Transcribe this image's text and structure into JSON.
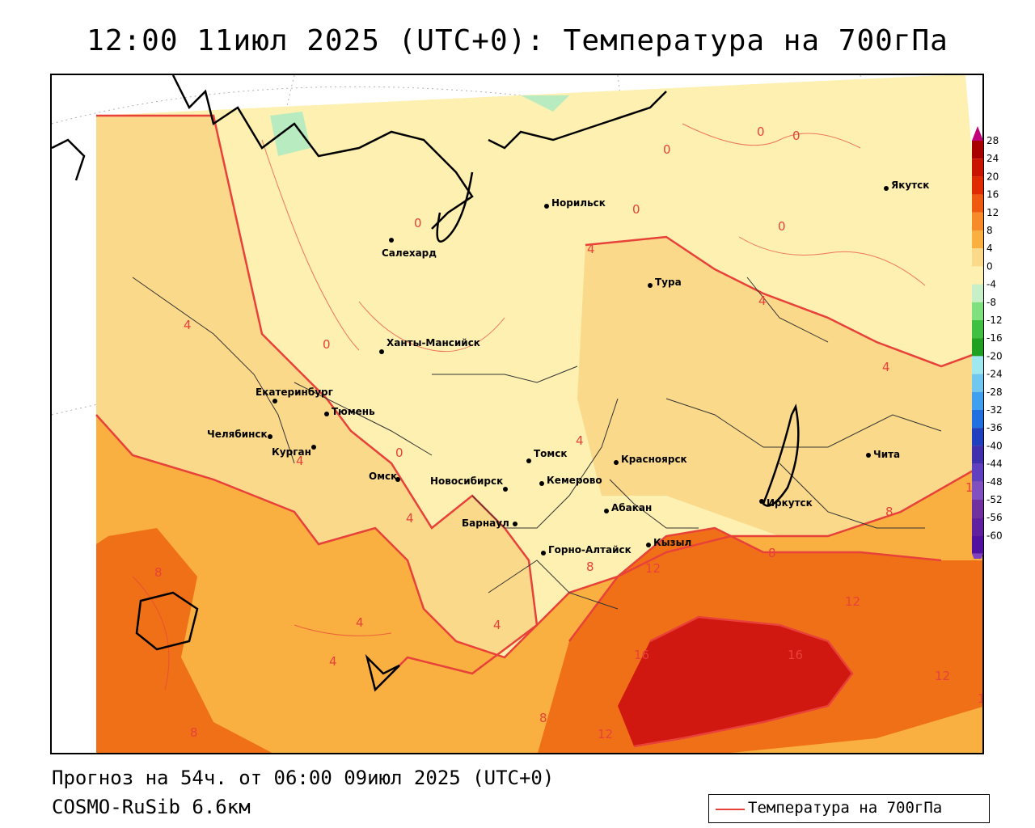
{
  "title": "12:00 11июл 2025 (UTC+0): Температура на 700гПа",
  "footer": {
    "forecast": "Прогноз на 54ч. от 06:00 09июл 2025 (UTC+0)",
    "model": "COSMO-RuSib 6.6км"
  },
  "legend": {
    "label": "Температура на 700гПа",
    "line_color": "#e8413a"
  },
  "colorbar": {
    "levels": [
      "28",
      "24",
      "20",
      "16",
      "12",
      "8",
      "4",
      "0",
      "-4",
      "-8",
      "-12",
      "-16",
      "-20",
      "-24",
      "-28",
      "-32",
      "-36",
      "-40",
      "-44",
      "-48",
      "-52",
      "-56",
      "-60"
    ],
    "colors": [
      "#a80000",
      "#c81400",
      "#e02a00",
      "#f05a10",
      "#f78b2a",
      "#f9b040",
      "#fbd98a",
      "#fdf0b0",
      "#c8f0c8",
      "#80e080",
      "#40c040",
      "#20a020",
      "#a0e8f0",
      "#70c8f0",
      "#40a0f0",
      "#2070e0",
      "#2040c0",
      "#4030b0",
      "#6040c0",
      "#8050c0",
      "#7030a0",
      "#6020a0",
      "#5010a0"
    ]
  },
  "cities": [
    {
      "name": "Норильск"
    },
    {
      "name": "Якутск"
    },
    {
      "name": "Салехард"
    },
    {
      "name": "Тура"
    },
    {
      "name": "Ханты-Мансийск"
    },
    {
      "name": "Екатеринбург"
    },
    {
      "name": "Тюмень"
    },
    {
      "name": "Челябинск"
    },
    {
      "name": "Курган"
    },
    {
      "name": "Томск"
    },
    {
      "name": "Красноярск"
    },
    {
      "name": "Омск"
    },
    {
      "name": "Новосибирск"
    },
    {
      "name": "Кемерово"
    },
    {
      "name": "Абакан"
    },
    {
      "name": "Иркутск"
    },
    {
      "name": "Чита"
    },
    {
      "name": "Барнаул"
    },
    {
      "name": "Кызыл"
    },
    {
      "name": "Горно-Алтайск"
    }
  ],
  "isotherm_labels": [
    "0",
    "0",
    "0",
    "0",
    "0",
    "0",
    "0",
    "0",
    "4",
    "4",
    "4",
    "4",
    "4",
    "4",
    "4",
    "4",
    "4",
    "4",
    "8",
    "8",
    "8",
    "8",
    "8",
    "8",
    "12",
    "12",
    "12",
    "12",
    "12",
    "16",
    "16",
    "1"
  ]
}
